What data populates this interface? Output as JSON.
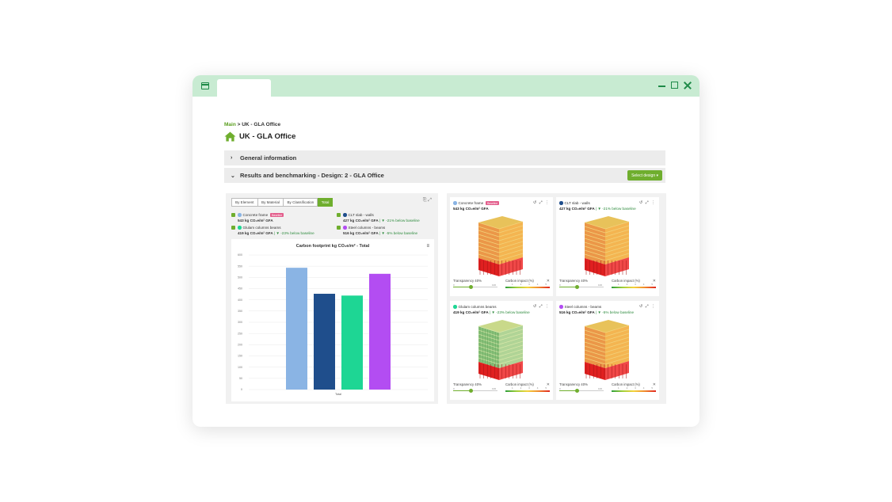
{
  "breadcrumb": {
    "link": "Main",
    "sep": " > ",
    "current": "UK - GLA Office"
  },
  "page_title": "UK - GLA Office",
  "sections": {
    "general": {
      "chevron": "›",
      "label": "General information"
    },
    "results": {
      "chevron": "⌄",
      "label": "Results and benchmarking - Design: 2 - GLA Office",
      "button": "Select design ▾"
    }
  },
  "tabs": [
    {
      "label": "By Element",
      "active": false
    },
    {
      "label": "By Material",
      "active": false
    },
    {
      "label": "By Classification",
      "active": false
    },
    {
      "label": "Total",
      "active": true
    }
  ],
  "legend": [
    {
      "name": "Concrete frame",
      "color": "#8ab4e4",
      "badge": "Baseline",
      "value": "543 kg CO₂e/m² GFA",
      "delta": ""
    },
    {
      "name": "CLT slab - walls",
      "color": "#1f4e8c",
      "badge": "",
      "value": "427 kg CO₂e/m² GFA",
      "delta": " | ▼ -21% below baseline"
    },
    {
      "name": "Glulam columns beams",
      "color": "#1ed694",
      "badge": "",
      "value": "419 kg CO₂e/m² GFA",
      "delta": " | ▼ -23% below baseline"
    },
    {
      "name": "Steel columns - beams",
      "color": "#b34df2",
      "badge": "",
      "value": "516 kg CO₂e/m² GFA",
      "delta": " | ▼ -5% below baseline"
    }
  ],
  "chart_data": {
    "type": "bar",
    "title": "Carbon footprint kg CO₂e/m² - Total",
    "categories": [
      "Total"
    ],
    "series": [
      {
        "name": "Concrete frame",
        "values": [
          543
        ],
        "color": "#8ab4e4"
      },
      {
        "name": "CLT slab - walls",
        "values": [
          427
        ],
        "color": "#1f4e8c"
      },
      {
        "name": "Glulam columns beams",
        "values": [
          419
        ],
        "color": "#1ed694"
      },
      {
        "name": "Steel columns - beams",
        "values": [
          516
        ],
        "color": "#b34df2"
      }
    ],
    "ylim": [
      0,
      600
    ],
    "yticks": [
      0,
      50,
      100,
      150,
      200,
      250,
      300,
      350,
      400,
      450,
      500,
      550,
      600
    ],
    "xlabel": "Total",
    "grid": true
  },
  "models": [
    {
      "name": "Concrete frame",
      "color": "#8ab4e4",
      "badge": "Baseline",
      "value": "543 kg CO₂e/m² GFA",
      "delta": "",
      "style": "orange",
      "transparency": "Transparency 40%",
      "impact": "Carbon impact (%)",
      "transparency_level": 0.4
    },
    {
      "name": "CLT slab - walls",
      "color": "#1f4e8c",
      "badge": "",
      "value": "427 kg CO₂e/m² GFA",
      "delta": " | ▼ -21% below baseline",
      "style": "orange",
      "transparency": "Transparency 40%",
      "impact": "Carbon impact (%)",
      "transparency_level": 0.4
    },
    {
      "name": "Glulam columns beams",
      "color": "#1ed694",
      "badge": "",
      "value": "419 kg CO₂e/m² GFA",
      "delta": " | ▼ -23% below baseline",
      "style": "green",
      "transparency": "Transparency 40%",
      "impact": "Carbon impact (%)",
      "transparency_level": 0.4
    },
    {
      "name": "Steel columns - beams",
      "color": "#b34df2",
      "badge": "",
      "value": "516 kg CO₂e/m² GFA",
      "delta": " | ▼ -5% below baseline",
      "style": "orange",
      "transparency": "Transparency 40%",
      "impact": "Carbon impact (%)",
      "transparency_level": 0.4
    }
  ],
  "slider_ticks": [
    "0",
    "100"
  ],
  "impact_ticks": [
    "1",
    "2",
    "3",
    "4",
    "5"
  ],
  "card_icons": "↺ ⤢ ⋮",
  "close_glyph": "✕",
  "panel_tools": "⎘ ⤢",
  "chart_menu": "≡",
  "colors": {
    "accent": "#6fae2e",
    "titlebar": "#c8ebd2",
    "window_icon": "#1e8a48"
  }
}
